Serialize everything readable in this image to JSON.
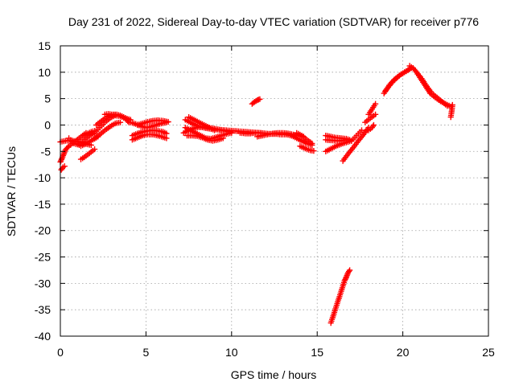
{
  "chart_data": {
    "type": "scatter",
    "title": "Day 231 of 2022, Sidereal Day-to-day VTEC variation (SDTVAR) for receiver p776",
    "xlabel": "GPS time / hours",
    "ylabel": "SDTVAR / TECUs",
    "xlim": [
      0,
      25
    ],
    "ylim": [
      -40,
      15
    ],
    "xticks": [
      0,
      5,
      10,
      15,
      20,
      25
    ],
    "yticks": [
      15,
      10,
      5,
      0,
      -5,
      -10,
      -15,
      -20,
      -25,
      -30,
      -35,
      -40
    ],
    "grid": true,
    "marker": "plus",
    "color": "#ff0000",
    "series": [
      {
        "name": "SDTVAR",
        "segments": [
          {
            "x": [
              0.0,
              0.1,
              0.2,
              0.3,
              0.5,
              0.7,
              0.9,
              1.1,
              1.3,
              1.5
            ],
            "y": [
              -7.0,
              -6.3,
              -5.5,
              -4.7,
              -4.0,
              -3.5,
              -3.0,
              -2.5,
              -2.0,
              -1.5
            ]
          },
          {
            "x": [
              0.0,
              0.3,
              0.6,
              0.9,
              1.2,
              1.5,
              1.8
            ],
            "y": [
              -3.2,
              -3.0,
              -2.9,
              -3.1,
              -3.3,
              -3.6,
              -3.8
            ]
          },
          {
            "x": [
              0.5,
              0.8,
              1.1,
              1.4,
              1.7,
              2.0
            ],
            "y": [
              -2.5,
              -3.5,
              -3.8,
              -2.8,
              -2.0,
              -1.5
            ]
          },
          {
            "x": [
              0.05,
              0.15,
              0.25
            ],
            "y": [
              -8.5,
              -8.0,
              -7.8
            ]
          },
          {
            "x": [
              1.2,
              1.4,
              1.6,
              1.8,
              2.0
            ],
            "y": [
              -6.5,
              -6.1,
              -5.6,
              -5.1,
              -4.6
            ]
          },
          {
            "x": [
              1.2,
              1.4,
              1.6,
              1.8,
              2.0,
              2.2
            ],
            "y": [
              -4.0,
              -3.7,
              -3.3,
              -3.0,
              -2.6,
              -2.2
            ]
          },
          {
            "x": [
              1.4,
              1.6,
              1.8,
              2.0
            ],
            "y": [
              -1.9,
              -1.6,
              -1.3,
              -1.1
            ]
          },
          {
            "x": [
              2.0,
              2.3,
              2.6,
              2.9,
              3.2,
              3.5,
              3.8,
              4.0
            ],
            "y": [
              -1.5,
              -0.5,
              0.5,
              1.3,
              1.8,
              1.7,
              1.2,
              0.5
            ]
          },
          {
            "x": [
              2.0,
              2.3,
              2.6,
              2.9,
              3.2,
              3.5
            ],
            "y": [
              -2.5,
              -1.8,
              -1.0,
              -0.3,
              0.3,
              0.5
            ]
          },
          {
            "x": [
              2.1,
              2.3,
              2.5,
              2.7,
              2.9,
              3.1,
              3.3,
              3.5,
              3.7,
              3.9,
              4.1
            ],
            "y": [
              0.0,
              0.5,
              1.0,
              1.5,
              1.8,
              2.0,
              2.0,
              1.8,
              1.5,
              1.2,
              1.0
            ]
          },
          {
            "x": [
              2.6,
              2.8,
              3.0,
              3.2
            ],
            "y": [
              2.0,
              2.1,
              2.0,
              1.9
            ]
          },
          {
            "x": [
              4.1,
              4.4,
              4.7,
              5.0,
              5.3,
              5.6,
              5.9,
              6.2
            ],
            "y": [
              0.5,
              0.2,
              -0.2,
              -0.5,
              -0.3,
              0.0,
              0.3,
              0.5
            ]
          },
          {
            "x": [
              4.2,
              4.5,
              4.8,
              5.1,
              5.4,
              5.7,
              6.0,
              6.2
            ],
            "y": [
              -2.0,
              -1.6,
              -1.3,
              -1.1,
              -1.0,
              -1.1,
              -1.3,
              -1.6
            ]
          },
          {
            "x": [
              4.2,
              4.5,
              4.8,
              5.1,
              5.4,
              5.7,
              6.0,
              6.2
            ],
            "y": [
              -2.8,
              -2.4,
              -2.0,
              -1.8,
              -1.8,
              -2.0,
              -2.3,
              -2.5
            ]
          },
          {
            "x": [
              4.5,
              4.8,
              5.1,
              5.4,
              5.7,
              6.0,
              6.3
            ],
            "y": [
              0.0,
              0.3,
              0.6,
              0.8,
              0.9,
              0.8,
              0.6
            ]
          },
          {
            "x": [
              7.3,
              7.7,
              8.1,
              8.5,
              8.9,
              9.3,
              9.7,
              10.1,
              10.5,
              10.9,
              11.3,
              11.7
            ],
            "y": [
              1.0,
              0.3,
              -0.3,
              -0.6,
              -0.8,
              -0.9,
              -1.0,
              -1.1,
              -1.2,
              -1.3,
              -1.4,
              -1.5
            ]
          },
          {
            "x": [
              7.3,
              7.6,
              7.9,
              8.2,
              8.5,
              8.8,
              9.1,
              9.4,
              9.7,
              10.0
            ],
            "y": [
              -0.5,
              -1.0,
              -1.5,
              -2.0,
              -2.5,
              -2.6,
              -2.3,
              -2.0,
              -1.7,
              -1.5
            ]
          },
          {
            "x": [
              7.5,
              7.8,
              8.1,
              8.4,
              8.7,
              9.0
            ],
            "y": [
              1.5,
              1.0,
              0.5,
              0.0,
              -0.5,
              -1.0
            ]
          },
          {
            "x": [
              7.2,
              7.5,
              7.8,
              8.1,
              8.4,
              8.7,
              9.0,
              9.3,
              9.6,
              9.9
            ],
            "y": [
              -1.5,
              -1.0,
              -0.6,
              -0.4,
              -0.4,
              -0.5,
              -0.7,
              -0.9,
              -1.1,
              -1.3
            ]
          },
          {
            "x": [
              7.4,
              7.7,
              8.0,
              8.3,
              8.6,
              8.9,
              9.2,
              9.5
            ],
            "y": [
              -2.0,
              -2.0,
              -2.1,
              -2.4,
              -2.8,
              -3.0,
              -2.8,
              -2.5
            ]
          },
          {
            "x": [
              11.2,
              11.35,
              11.5,
              11.65
            ],
            "y": [
              4.0,
              4.4,
              4.7,
              4.9
            ]
          },
          {
            "x": [
              10.5,
              10.8,
              11.1,
              11.4,
              11.7,
              12.0,
              12.3,
              12.6,
              12.9,
              13.2,
              13.5
            ],
            "y": [
              -1.5,
              -1.6,
              -1.6,
              -1.5,
              -1.5,
              -1.6,
              -1.7,
              -1.7,
              -1.8,
              -1.8,
              -2.0
            ]
          },
          {
            "x": [
              11.5,
              11.8,
              12.1,
              12.4,
              12.7,
              13.0,
              13.3,
              13.6,
              13.9,
              14.2
            ],
            "y": [
              -2.2,
              -2.0,
              -1.8,
              -1.6,
              -1.5,
              -1.5,
              -1.6,
              -1.8,
              -2.0,
              -2.2
            ]
          },
          {
            "x": [
              13.5,
              13.8,
              14.1,
              14.4,
              14.7
            ],
            "y": [
              -2.0,
              -2.5,
              -3.0,
              -3.5,
              -3.8
            ]
          },
          {
            "x": [
              13.8,
              14.1,
              14.4,
              14.7
            ],
            "y": [
              -1.5,
              -2.0,
              -2.8,
              -3.5
            ]
          },
          {
            "x": [
              14.0,
              14.2,
              14.4,
              14.6,
              14.8
            ],
            "y": [
              -4.0,
              -4.3,
              -4.6,
              -4.8,
              -4.9
            ]
          },
          {
            "x": [
              15.5,
              15.8,
              16.1,
              16.4,
              16.7,
              16.9
            ],
            "y": [
              -2.0,
              -2.2,
              -2.4,
              -2.5,
              -2.6,
              -2.8
            ]
          },
          {
            "x": [
              15.5,
              15.8,
              16.1,
              16.4,
              16.7
            ],
            "y": [
              -2.8,
              -2.9,
              -3.0,
              -3.0,
              -2.8
            ]
          },
          {
            "x": [
              15.5,
              15.8,
              16.1,
              16.4,
              16.7,
              17.0
            ],
            "y": [
              -5.0,
              -4.5,
              -4.0,
              -3.6,
              -3.3,
              -3.0
            ]
          },
          {
            "x": [
              16.5,
              16.8,
              17.1,
              17.4,
              17.7,
              18.0
            ],
            "y": [
              -6.8,
              -5.5,
              -4.3,
              -3.0,
              -1.8,
              -0.5
            ]
          },
          {
            "x": [
              17.0,
              17.3,
              17.6
            ],
            "y": [
              -3.0,
              -2.0,
              -1.0
            ]
          },
          {
            "x": [
              18.0,
              18.2,
              18.4
            ],
            "y": [
              2.0,
              3.0,
              4.0
            ]
          },
          {
            "x": [
              17.8,
              18.1,
              18.4
            ],
            "y": [
              0.5,
              1.3,
              2.0
            ]
          },
          {
            "x": [
              18.0,
              18.2,
              18.3
            ],
            "y": [
              -1.0,
              -0.5,
              0.0
            ]
          },
          {
            "x": [
              15.8,
              15.9,
              16.0,
              16.1,
              16.2,
              16.3,
              16.4,
              16.5,
              16.6,
              16.7,
              16.8,
              16.9
            ],
            "y": [
              -37.5,
              -36.5,
              -35.5,
              -34.5,
              -33.5,
              -32.5,
              -31.5,
              -30.5,
              -29.5,
              -28.8,
              -28.0,
              -27.5
            ]
          },
          {
            "x": [
              18.9,
              19.2,
              19.5,
              19.8,
              20.1,
              20.4
            ],
            "y": [
              6.0,
              7.5,
              8.6,
              9.4,
              10.0,
              10.6
            ]
          },
          {
            "x": [
              19.0,
              19.3,
              19.6,
              19.9,
              20.2,
              20.5
            ],
            "y": [
              6.5,
              7.8,
              8.8,
              9.6,
              10.2,
              10.8
            ]
          },
          {
            "x": [
              20.4,
              20.6,
              20.8,
              21.0,
              21.3,
              21.6,
              21.9,
              22.2,
              22.5,
              22.8
            ],
            "y": [
              11.2,
              10.8,
              10.0,
              9.0,
              7.5,
              6.0,
              5.2,
              4.5,
              4.0,
              3.5
            ]
          },
          {
            "x": [
              20.8,
              21.1,
              21.4,
              21.7,
              22.0,
              22.3,
              22.6
            ],
            "y": [
              10.0,
              8.8,
              7.3,
              6.0,
              5.2,
              4.4,
              3.6
            ]
          },
          {
            "x": [
              22.8,
              22.85,
              22.9
            ],
            "y": [
              1.5,
              2.5,
              3.8
            ]
          }
        ]
      }
    ]
  }
}
